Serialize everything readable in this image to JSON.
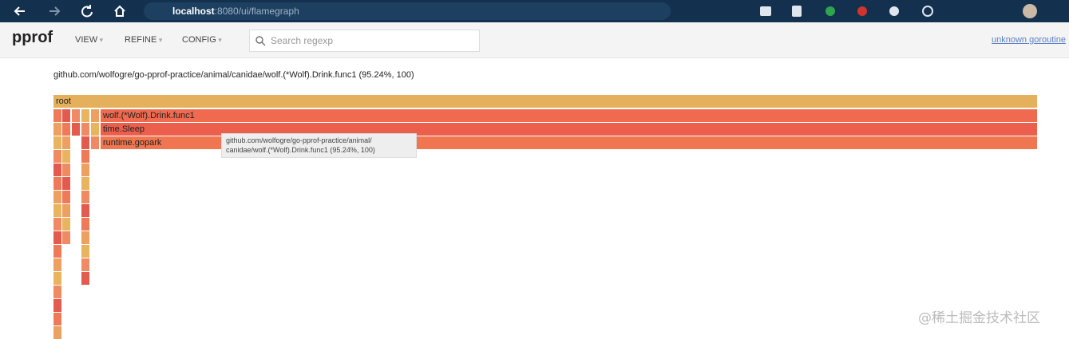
{
  "browser": {
    "url_host": "localhost",
    "url_path": ":8080/ui/flamegraph"
  },
  "header": {
    "logo": "pprof",
    "menus": [
      "VIEW",
      "REFINE",
      "CONFIG"
    ],
    "search_placeholder": "Search regexp",
    "link": "unknown goroutine"
  },
  "flamegraph": {
    "title": "github.com/wolfogre/go-pprof-practice/animal/canidae/wolf.(*Wolf).Drink.func1 (95.24%, 100)",
    "frames": [
      "root",
      "wolf.(*Wolf).Drink.func1",
      "time.Sleep",
      "runtime.gopark"
    ],
    "tooltip": {
      "lines": [
        "github.com/wolfogre/go-pprof-practice/animal/",
        "canidae/wolf.(*Wolf).Drink.func1 (95.24%, 100)"
      ]
    }
  },
  "watermark": "@稀土掘金技术社区"
}
